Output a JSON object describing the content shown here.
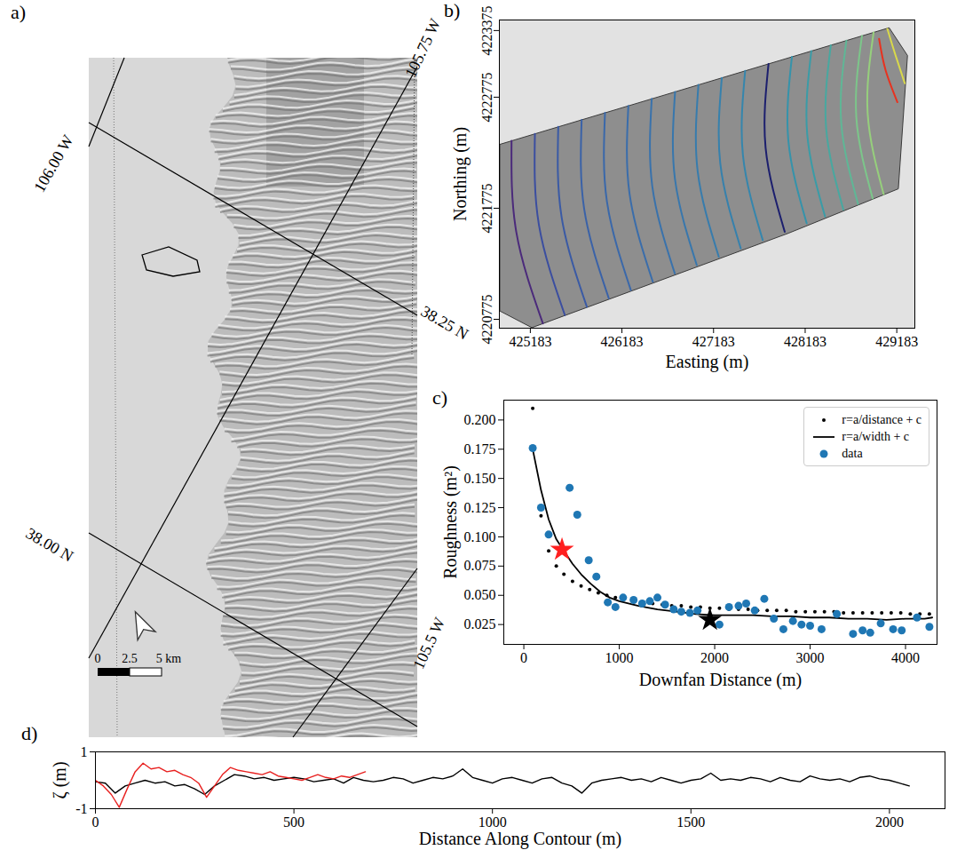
{
  "chart_data": [
    {
      "type": "map",
      "title": "a)",
      "graticule_labels": [
        "106.00 W",
        "105.75 W",
        "38.25 N",
        "38.00 N",
        "105.5 W"
      ],
      "scale_labels": [
        "0",
        "2.5",
        "5 km"
      ]
    },
    {
      "type": "contour",
      "title": "b)",
      "x_label": "Easting (m)",
      "y_label": "Northing (m)",
      "xlim": [
        424845,
        429380
      ],
      "ylim": [
        4220695,
        4223470
      ],
      "xticks": [
        425183,
        426183,
        427183,
        428183,
        429183
      ],
      "yticks": [
        4220775,
        4221775,
        4222775,
        4223375
      ],
      "outline": {
        "x": [
          424850,
          429100,
          429300,
          429200,
          428000,
          425200,
          424850
        ],
        "y": [
          4222350,
          4223400,
          4223150,
          4221950,
          4221550,
          4220700,
          4220850
        ]
      },
      "series": [
        {
          "color": "#4b2a7b",
          "x": [
            424978,
            425030,
            425320
          ],
          "values": [
            4222382,
            4221560,
            4220738
          ]
        },
        {
          "color": "#3b4ea0",
          "x": [
            425233,
            425276,
            425560
          ],
          "values": [
            4222445,
            4221629,
            4220813
          ]
        },
        {
          "color": "#3a5aa5",
          "x": [
            425488,
            425524,
            425800
          ],
          "values": [
            4222508,
            4221698,
            4220888
          ]
        },
        {
          "color": "#3a62a8",
          "x": [
            425743,
            425771,
            426040
          ],
          "values": [
            4222571,
            4221767,
            4220963
          ]
        },
        {
          "color": "#3a68aa",
          "x": [
            425998,
            426019,
            426280
          ],
          "values": [
            4222634,
            4221836,
            4221038
          ]
        },
        {
          "color": "#3a6dab",
          "x": [
            426253,
            426266,
            426520
          ],
          "values": [
            4222697,
            4221905,
            4221113
          ]
        },
        {
          "color": "#3972ac",
          "x": [
            426508,
            426514,
            426760
          ],
          "values": [
            4222760,
            4221974,
            4221188
          ]
        },
        {
          "color": "#3877ad",
          "x": [
            426763,
            426761,
            427000
          ],
          "values": [
            4222823,
            4222043,
            4221263
          ]
        },
        {
          "color": "#377cad",
          "x": [
            427018,
            427009,
            427240
          ],
          "values": [
            4222886,
            4222112,
            4221338
          ]
        },
        {
          "color": "#3681ad",
          "x": [
            427273,
            427256,
            427480
          ],
          "values": [
            4222949,
            4222181,
            4221413
          ]
        },
        {
          "color": "#3586ad",
          "x": [
            427528,
            427504,
            427720
          ],
          "values": [
            4223012,
            4222250,
            4221488
          ]
        },
        {
          "color": "#1c1f6e",
          "x": [
            427783,
            427751,
            427960
          ],
          "values": [
            4223075,
            4222319,
            4221563
          ]
        },
        {
          "color": "#3593ab",
          "x": [
            428038,
            427999,
            428200
          ],
          "values": [
            4223138,
            4222388,
            4221638
          ]
        },
        {
          "color": "#3a9ca7",
          "x": [
            428250,
            428205,
            428400
          ],
          "values": [
            4223190,
            4222445,
            4221700
          ]
        },
        {
          "color": "#48a8a0",
          "x": [
            428463,
            428411,
            428600
          ],
          "values": [
            4223243,
            4222503,
            4221763
          ]
        },
        {
          "color": "#5fb796",
          "x": [
            428633,
            428576,
            428760
          ],
          "values": [
            4223285,
            4222549,
            4221813
          ]
        },
        {
          "color": "#7cc68a",
          "x": [
            428803,
            428741,
            428920
          ],
          "values": [
            4223327,
            4222595,
            4221863
          ]
        },
        {
          "color": "#96cf7c",
          "x": [
            428930,
            428865,
            429040
          ],
          "values": [
            4223358,
            4222629,
            4221900
          ]
        },
        {
          "color": "#e8321f",
          "x": [
            428990,
            429060,
            429190
          ],
          "values": [
            4223300,
            4223020,
            4222730
          ]
        },
        {
          "color": "#d9d94a",
          "x": [
            429080,
            429170,
            429270
          ],
          "values": [
            4223390,
            4223150,
            4222900
          ]
        }
      ]
    },
    {
      "type": "scatter",
      "title": "c)",
      "x_label": "Downfan Distance (m)",
      "y_label": "Roughness (m²)",
      "xlim": [
        -210,
        4330
      ],
      "ylim": [
        0.008,
        0.217
      ],
      "xticks": [
        0,
        1000,
        2000,
        3000,
        4000
      ],
      "yticks": [
        0.025,
        {
          "value": 0.05,
          "label": "0.050"
        },
        0.075,
        {
          "value": 0.1,
          "label": "0.100"
        },
        0.125,
        {
          "value": 0.15,
          "label": "0.150"
        },
        0.175,
        {
          "value": 0.2,
          "label": "0.200"
        }
      ],
      "legend": "upper right",
      "series": [
        {
          "name": "r=a/distance + c",
          "type": "scatter",
          "marker": "dot",
          "color": "#000000",
          "x": [
            93,
            180,
            260,
            340,
            420,
            510,
            600,
            690,
            780,
            870,
            960,
            1050,
            1150,
            1250,
            1350,
            1450,
            1550,
            1650,
            1750,
            1850,
            1950,
            2050,
            2150,
            2250,
            2350,
            2450,
            2550,
            2650,
            2750,
            2850,
            2950,
            3050,
            3150,
            3250,
            3350,
            3450,
            3550,
            3650,
            3750,
            3850,
            3950,
            4050,
            4150,
            4250
          ],
          "values": [
            0.21,
            0.118,
            0.088,
            0.075,
            0.068,
            0.062,
            0.058,
            0.055,
            0.052,
            0.05,
            0.048,
            0.047,
            0.045,
            0.044,
            0.043,
            0.042,
            0.041,
            0.041,
            0.04,
            0.04,
            0.039,
            0.039,
            0.038,
            0.038,
            0.038,
            0.037,
            0.037,
            0.037,
            0.037,
            0.036,
            0.036,
            0.036,
            0.036,
            0.036,
            0.035,
            0.035,
            0.035,
            0.035,
            0.035,
            0.035,
            0.035,
            0.034,
            0.034,
            0.034
          ]
        },
        {
          "name": "r=a/width + c",
          "type": "line",
          "line_style": "solid",
          "color": "#000000",
          "x": [
            93,
            180,
            260,
            340,
            420,
            510,
            600,
            700,
            800,
            900,
            1000,
            1200,
            1400,
            1600,
            1800,
            2000,
            2200,
            2400,
            2600,
            2800,
            3000,
            3200,
            3400,
            3600,
            3800,
            4000,
            4200,
            4280
          ],
          "values": [
            0.175,
            0.14,
            0.115,
            0.098,
            0.088,
            0.077,
            0.068,
            0.06,
            0.053,
            0.048,
            0.045,
            0.041,
            0.038,
            0.036,
            0.034,
            0.033,
            0.033,
            0.033,
            0.032,
            0.032,
            0.031,
            0.031,
            0.03,
            0.03,
            0.029,
            0.03,
            0.03,
            0.031
          ]
        },
        {
          "name": "data",
          "type": "scatter",
          "marker": "circle",
          "color": "#1f77b4",
          "x": [
            93,
            180,
            260,
            480,
            560,
            680,
            760,
            880,
            960,
            1040,
            1150,
            1240,
            1320,
            1400,
            1480,
            1570,
            1650,
            1740,
            1820,
            2050,
            2150,
            2250,
            2330,
            2420,
            2520,
            2620,
            2720,
            2820,
            2910,
            3000,
            3120,
            3280,
            3450,
            3550,
            3630,
            3740,
            3870,
            3960,
            4120,
            4250
          ],
          "values": [
            0.176,
            0.125,
            0.102,
            0.142,
            0.119,
            0.08,
            0.066,
            0.044,
            0.04,
            0.048,
            0.046,
            0.043,
            0.045,
            0.048,
            0.042,
            0.038,
            0.036,
            0.035,
            0.037,
            0.025,
            0.04,
            0.041,
            0.043,
            0.037,
            0.047,
            0.03,
            0.021,
            0.028,
            0.025,
            0.024,
            0.021,
            0.034,
            0.017,
            0.02,
            0.018,
            0.026,
            0.021,
            0.02,
            0.031,
            0.023
          ]
        },
        {
          "type": "scatter",
          "marker": "star",
          "color": "#ff2020",
          "x": [
            400
          ],
          "values": [
            0.089
          ]
        },
        {
          "type": "scatter",
          "marker": "star",
          "color": "#000000",
          "x": [
            1950
          ],
          "values": [
            0.029
          ]
        }
      ]
    },
    {
      "type": "line",
      "title": "d)",
      "x_label": "Distance Along Contour (m)",
      "y_label": "ζ (m)",
      "xlim": [
        0,
        2140
      ],
      "ylim": [
        -1,
        1
      ],
      "xticks": [
        0,
        500,
        1000,
        1500,
        2000
      ],
      "yticks": [
        -1,
        1
      ],
      "series": [
        {
          "color": "#000000",
          "x": [
            0,
            25,
            50,
            75,
            100,
            125,
            150,
            175,
            200,
            225,
            250,
            275,
            300,
            325,
            350,
            375,
            400,
            425,
            450,
            475,
            500,
            525,
            550,
            575,
            600,
            625,
            650,
            675,
            700,
            725,
            750,
            775,
            800,
            825,
            850,
            875,
            900,
            925,
            950,
            975,
            1000,
            1025,
            1050,
            1075,
            1100,
            1125,
            1150,
            1175,
            1200,
            1225,
            1250,
            1275,
            1300,
            1325,
            1350,
            1375,
            1400,
            1425,
            1450,
            1475,
            1500,
            1525,
            1550,
            1575,
            1600,
            1625,
            1650,
            1675,
            1700,
            1725,
            1750,
            1775,
            1800,
            1825,
            1850,
            1875,
            1900,
            1925,
            1950,
            1975,
            2000,
            2025,
            2050
          ],
          "values": [
            -0.05,
            -0.1,
            -0.45,
            -0.2,
            -0.1,
            0.0,
            -0.1,
            -0.05,
            -0.2,
            -0.15,
            -0.3,
            -0.5,
            -0.2,
            0.0,
            0.2,
            0.15,
            0.05,
            0.1,
            0.0,
            0.05,
            0.1,
            0.05,
            -0.05,
            0.0,
            0.05,
            -0.1,
            0.1,
            0.0,
            -0.05,
            0.0,
            0.1,
            0.05,
            -0.1,
            0.0,
            0.1,
            0.05,
            0.15,
            0.4,
            0.1,
            0.0,
            -0.1,
            0.05,
            0.1,
            0.0,
            -0.1,
            0.05,
            0.1,
            -0.1,
            -0.2,
            -0.45,
            -0.1,
            0.0,
            0.05,
            0.1,
            0.0,
            0.05,
            -0.05,
            0.1,
            0.0,
            -0.1,
            0.0,
            0.05,
            0.25,
            0.0,
            0.05,
            0.0,
            0.1,
            0.05,
            -0.05,
            0.1,
            0.0,
            -0.05,
            0.15,
            0.05,
            0.0,
            0.05,
            -0.05,
            0.1,
            0.15,
            0.05,
            0.0,
            -0.1,
            -0.2
          ]
        },
        {
          "color": "#e8201f",
          "x": [
            0,
            20,
            40,
            60,
            80,
            100,
            120,
            140,
            160,
            180,
            200,
            220,
            240,
            260,
            280,
            300,
            320,
            340,
            360,
            380,
            400,
            420,
            440,
            460,
            480,
            500,
            520,
            540,
            560,
            580,
            600,
            620,
            640,
            660,
            680
          ],
          "values": [
            0.0,
            -0.2,
            -0.5,
            -0.95,
            -0.3,
            0.3,
            0.6,
            0.4,
            0.45,
            0.3,
            0.35,
            0.2,
            0.1,
            -0.1,
            -0.6,
            -0.2,
            0.2,
            0.45,
            0.35,
            0.3,
            0.25,
            0.2,
            0.3,
            0.15,
            0.1,
            0.05,
            0.0,
            0.1,
            0.2,
            0.1,
            0.05,
            0.15,
            0.1,
            0.2,
            0.3
          ]
        }
      ]
    }
  ]
}
